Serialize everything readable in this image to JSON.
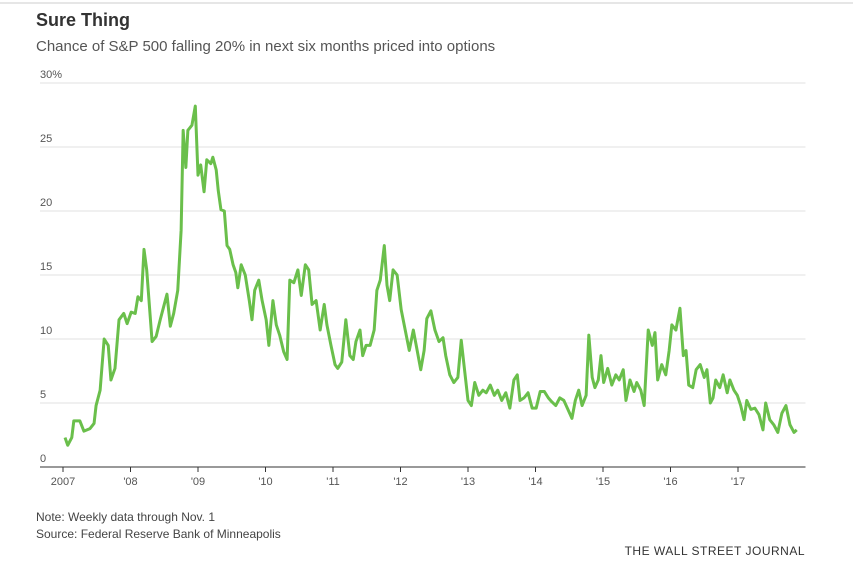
{
  "chart_data": {
    "type": "line",
    "title": "Sure Thing",
    "subtitle": "Chance of S&P 500 falling 20% in next six months priced into options",
    "note": "Note: Weekly data through Nov. 1",
    "source": "Source: Federal Reserve Bank of Minneapolis",
    "credit": "THE WALL STREET JOURNAL",
    "xlim": [
      2007,
      2018
    ],
    "xticks": [
      2007,
      {
        "value": 2008,
        "label": "'08"
      },
      {
        "value": 2009,
        "label": "'09"
      },
      {
        "value": 2010,
        "label": "'10"
      },
      {
        "value": 2011,
        "label": "'11"
      },
      {
        "value": 2012,
        "label": "'12"
      },
      {
        "value": 2013,
        "label": "'13"
      },
      {
        "value": 2014,
        "label": "'14"
      },
      {
        "value": 2015,
        "label": "'15"
      },
      {
        "value": 2016,
        "label": "'16"
      },
      {
        "value": 2017,
        "label": "'17"
      }
    ],
    "ylim": [
      0,
      30
    ],
    "yticks": [
      0,
      5,
      10,
      15,
      20,
      25,
      {
        "value": 30,
        "label": "30%"
      }
    ],
    "grid": true,
    "x": [
      2007.03,
      2007.07,
      2007.13,
      2007.16,
      2007.25,
      2007.31,
      2007.4,
      2007.46,
      2007.49,
      2007.55,
      2007.61,
      2007.67,
      2007.71,
      2007.77,
      2007.83,
      2007.9,
      2007.95,
      2008.01,
      2008.07,
      2008.11,
      2008.16,
      2008.2,
      2008.24,
      2008.32,
      2008.38,
      2008.44,
      2008.5,
      2008.54,
      2008.59,
      2008.64,
      2008.7,
      2008.75,
      2008.78,
      2008.82,
      2008.85,
      2008.91,
      2008.96,
      2009.0,
      2009.04,
      2009.09,
      2009.13,
      2009.19,
      2009.22,
      2009.27,
      2009.3,
      2009.34,
      2009.39,
      2009.43,
      2009.47,
      2009.52,
      2009.56,
      2009.59,
      2009.64,
      2009.7,
      2009.76,
      2009.8,
      2009.84,
      2009.9,
      2009.95,
      2010.01,
      2010.05,
      2010.11,
      2010.16,
      2010.21,
      2010.27,
      2010.32,
      2010.36,
      2010.42,
      2010.48,
      2010.53,
      2010.59,
      2010.64,
      2010.69,
      2010.75,
      2010.81,
      2010.87,
      2010.91,
      2010.97,
      2011.03,
      2011.07,
      2011.13,
      2011.19,
      2011.25,
      2011.3,
      2011.34,
      2011.4,
      2011.44,
      2011.49,
      2011.55,
      2011.61,
      2011.65,
      2011.7,
      2011.76,
      2011.8,
      2011.84,
      2011.89,
      2011.95,
      2012.01,
      2012.07,
      2012.13,
      2012.19,
      2012.24,
      2012.3,
      2012.35,
      2012.39,
      2012.45,
      2012.51,
      2012.57,
      2012.63,
      2012.67,
      2012.73,
      2012.79,
      2012.85,
      2012.9,
      2012.94,
      2013.0,
      2013.05,
      2013.1,
      2013.16,
      2013.22,
      2013.27,
      2013.33,
      2013.39,
      2013.44,
      2013.5,
      2013.56,
      2013.62,
      2013.68,
      2013.73,
      2013.77,
      2013.83,
      2013.89,
      2013.95,
      2014.01,
      2014.07,
      2014.13,
      2014.19,
      2014.24,
      2014.3,
      2014.36,
      2014.42,
      2014.48,
      2014.54,
      2014.59,
      2014.64,
      2014.69,
      2014.75,
      2014.79,
      2014.84,
      2014.88,
      2014.93,
      2014.97,
      2015.01,
      2015.07,
      2015.13,
      2015.19,
      2015.24,
      2015.3,
      2015.34,
      2015.4,
      2015.46,
      2015.5,
      2015.56,
      2015.61,
      2015.67,
      2015.73,
      2015.77,
      2015.81,
      2015.87,
      2015.93,
      2015.98,
      2016.02,
      2016.08,
      2016.14,
      2016.19,
      2016.23,
      2016.27,
      2016.33,
      2016.38,
      2016.44,
      2016.5,
      2016.54,
      2016.59,
      2016.63,
      2016.67,
      2016.73,
      2016.78,
      2016.84,
      2016.88,
      2016.94,
      2016.99,
      2017.04,
      2017.09,
      2017.13,
      2017.19,
      2017.25,
      2017.31,
      2017.37,
      2017.41,
      2017.47,
      2017.53,
      2017.59,
      2017.65,
      2017.71,
      2017.77,
      2017.83,
      2017.87
    ],
    "series": [
      {
        "color": "#6abf4b",
        "values": [
          2.3,
          1.7,
          2.3,
          3.6,
          3.6,
          2.8,
          3.0,
          3.4,
          4.8,
          6.0,
          10,
          9.5,
          6.8,
          7.7,
          11.5,
          12,
          11.2,
          12.1,
          12,
          13.3,
          13,
          17,
          15.4,
          9.8,
          10.2,
          11.5,
          12.7,
          13.5,
          11,
          12,
          13.8,
          18.5,
          26.3,
          23.4,
          26.3,
          26.7,
          28.2,
          22.8,
          23.6,
          21.5,
          24,
          23.7,
          24.2,
          23.2,
          21.6,
          20.1,
          20,
          17.3,
          17,
          15.8,
          15.2,
          14,
          15.8,
          15,
          13,
          11.5,
          13.8,
          14.6,
          13,
          11.5,
          9.5,
          13,
          11.1,
          10.3,
          9,
          8.4,
          14.6,
          14.4,
          15.4,
          13.4,
          15.8,
          15.4,
          12.7,
          13,
          10.7,
          12.7,
          11.1,
          9.5,
          8,
          7.7,
          8.2,
          11.5,
          8.7,
          8.4,
          9.8,
          10.7,
          8.7,
          9.5,
          9.5,
          10.7,
          13.8,
          14.6,
          17.3,
          14.2,
          13,
          15.4,
          15,
          12.3,
          10.7,
          9.1,
          10.7,
          9.3,
          7.6,
          9.1,
          11.6,
          12.2,
          10.7,
          9.8,
          10.1,
          8.7,
          7.2,
          6.6,
          7,
          9.9,
          8,
          5.2,
          4.8,
          6.6,
          5.6,
          6,
          5.8,
          6.4,
          5.6,
          6,
          5.2,
          5.8,
          4.6,
          6.8,
          7.2,
          5.2,
          5.4,
          5.8,
          4.6,
          4.6,
          5.9,
          5.9,
          5.4,
          5.1,
          4.8,
          5.4,
          5.2,
          4.5,
          3.8,
          5.2,
          6,
          4.8,
          5.6,
          10.3,
          7,
          6.2,
          6.8,
          8.7,
          6.6,
          7.7,
          6.4,
          7.2,
          6.8,
          7.6,
          5.2,
          6.8,
          5.9,
          6.6,
          6,
          4.8,
          10.7,
          9.5,
          10.5,
          6.8,
          8,
          7.2,
          9.1,
          11.1,
          10.7,
          12.4,
          8.7,
          9.1,
          6.4,
          6.2,
          7.6,
          8,
          7,
          7.6,
          5,
          5.4,
          6.8,
          6.2,
          7.2,
          5.8,
          6.8,
          6,
          5.6,
          4.8,
          3.7,
          5.2,
          4.5,
          4.6,
          4.1,
          2.9,
          5,
          3.7,
          3.3,
          2.7,
          4.2,
          4.8,
          3.3,
          2.7,
          2.9
        ]
      }
    ]
  }
}
